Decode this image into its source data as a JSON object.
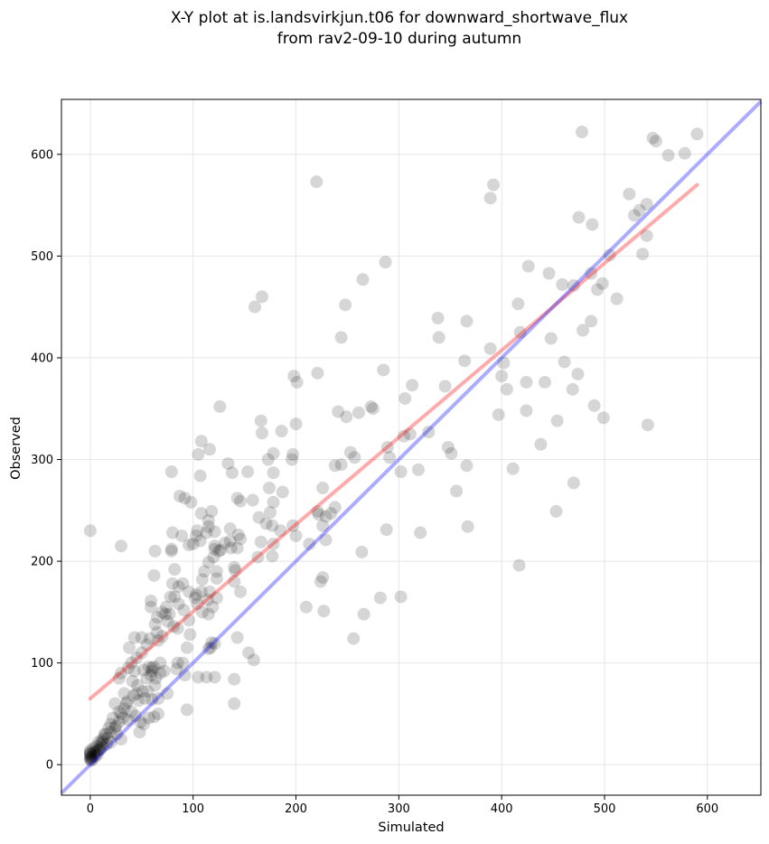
{
  "chart_data": {
    "type": "scatter",
    "title_line1": "X-Y plot at is.landsvirkjun.t06 for downward_shortwave_flux",
    "title_line2": "from rav2-09-10 during autumn",
    "xlabel": "Simulated",
    "ylabel": "Observed",
    "xlim": [
      -28,
      652
    ],
    "ylim": [
      -30,
      654
    ],
    "x_ticks": [
      0,
      100,
      200,
      300,
      400,
      500,
      600
    ],
    "y_ticks": [
      0,
      100,
      200,
      300,
      400,
      500,
      600
    ],
    "grid": true,
    "colors": {
      "points": "#000000",
      "fit_line": "#ff0000",
      "identity_line": "#0000ff"
    },
    "fit_line": {
      "x": [
        0,
        590
      ],
      "y": [
        65,
        570
      ]
    },
    "identity_line": {
      "x": [
        -28,
        652
      ],
      "y": [
        -28,
        652
      ]
    },
    "points": [
      [
        0,
        230
      ],
      [
        30,
        215
      ],
      [
        220,
        573
      ],
      [
        478,
        622
      ],
      [
        590,
        620
      ],
      [
        547,
        616
      ],
      [
        550,
        613
      ],
      [
        562,
        599
      ],
      [
        578,
        601
      ],
      [
        392,
        570
      ],
      [
        389,
        557
      ],
      [
        524,
        561
      ],
      [
        541,
        551
      ],
      [
        534,
        545
      ],
      [
        529,
        540
      ],
      [
        475,
        538
      ],
      [
        488,
        531
      ],
      [
        287,
        494
      ],
      [
        426,
        490
      ],
      [
        505,
        501
      ],
      [
        537,
        502
      ],
      [
        541,
        520
      ],
      [
        446,
        483
      ],
      [
        487,
        483
      ],
      [
        459,
        472
      ],
      [
        498,
        473
      ],
      [
        470,
        471
      ],
      [
        493,
        467
      ],
      [
        265,
        477
      ],
      [
        248,
        452
      ],
      [
        416,
        453
      ],
      [
        160,
        450
      ],
      [
        167,
        460
      ],
      [
        512,
        458
      ],
      [
        487,
        436
      ],
      [
        479,
        427
      ],
      [
        338,
        439
      ],
      [
        366,
        436
      ],
      [
        244,
        420
      ],
      [
        339,
        420
      ],
      [
        418,
        425
      ],
      [
        448,
        419
      ],
      [
        364,
        397
      ],
      [
        389,
        409
      ],
      [
        402,
        395
      ],
      [
        461,
        396
      ],
      [
        400,
        382
      ],
      [
        285,
        388
      ],
      [
        198,
        382
      ],
      [
        221,
        385
      ],
      [
        201,
        376
      ],
      [
        424,
        376
      ],
      [
        442,
        376
      ],
      [
        474,
        384
      ],
      [
        313,
        373
      ],
      [
        345,
        372
      ],
      [
        405,
        369
      ],
      [
        469,
        369
      ],
      [
        490,
        353
      ],
      [
        424,
        348
      ],
      [
        306,
        360
      ],
      [
        397,
        344
      ],
      [
        499,
        341
      ],
      [
        454,
        338
      ],
      [
        542,
        334
      ],
      [
        438,
        315
      ],
      [
        261,
        346
      ],
      [
        249,
        342
      ],
      [
        241,
        347
      ],
      [
        275,
        350
      ],
      [
        273,
        352
      ],
      [
        200,
        335
      ],
      [
        166,
        338
      ],
      [
        186,
        328
      ],
      [
        167,
        326
      ],
      [
        311,
        325
      ],
      [
        329,
        327
      ],
      [
        305,
        323
      ],
      [
        348,
        312
      ],
      [
        351,
        306
      ],
      [
        253,
        307
      ],
      [
        257,
        302
      ],
      [
        238,
        294
      ],
      [
        244,
        295
      ],
      [
        226,
        272
      ],
      [
        197,
        305
      ],
      [
        289,
        312
      ],
      [
        291,
        302
      ],
      [
        302,
        288
      ],
      [
        319,
        290
      ],
      [
        366,
        294
      ],
      [
        411,
        291
      ],
      [
        417,
        196
      ],
      [
        367,
        234
      ],
      [
        321,
        228
      ],
      [
        264,
        209
      ],
      [
        356,
        269
      ],
      [
        288,
        231
      ],
      [
        453,
        249
      ],
      [
        470,
        277
      ],
      [
        213,
        217
      ],
      [
        229,
        221
      ],
      [
        226,
        235
      ],
      [
        229,
        244
      ],
      [
        234,
        247
      ],
      [
        238,
        253
      ],
      [
        221,
        249
      ],
      [
        222,
        246
      ],
      [
        197,
        235
      ],
      [
        185,
        230
      ],
      [
        200,
        225
      ],
      [
        178,
        217
      ],
      [
        177,
        205
      ],
      [
        163,
        204
      ],
      [
        166,
        219
      ],
      [
        171,
        237
      ],
      [
        177,
        235
      ],
      [
        178,
        258
      ],
      [
        175,
        248
      ],
      [
        164,
        243
      ],
      [
        158,
        260
      ],
      [
        174,
        272
      ],
      [
        178,
        287
      ],
      [
        178,
        306
      ],
      [
        173,
        300
      ],
      [
        196,
        300
      ],
      [
        187,
        268
      ],
      [
        146,
        259
      ],
      [
        153,
        288
      ],
      [
        143,
        262
      ],
      [
        121,
        212
      ],
      [
        125,
        210
      ],
      [
        137,
        213
      ],
      [
        143,
        213
      ],
      [
        131,
        218
      ],
      [
        136,
        220
      ],
      [
        136,
        232
      ],
      [
        144,
        226
      ],
      [
        146,
        222
      ],
      [
        121,
        229
      ],
      [
        115,
        234
      ],
      [
        118,
        249
      ],
      [
        108,
        247
      ],
      [
        104,
        230
      ],
      [
        115,
        240
      ],
      [
        92,
        262
      ],
      [
        98,
        258
      ],
      [
        87,
        264
      ],
      [
        116,
        310
      ],
      [
        108,
        318
      ],
      [
        105,
        305
      ],
      [
        107,
        284
      ],
      [
        134,
        296
      ],
      [
        126,
        352
      ],
      [
        79,
        288
      ],
      [
        138,
        287
      ],
      [
        89,
        225
      ],
      [
        80,
        228
      ],
      [
        79,
        212
      ],
      [
        79,
        210
      ],
      [
        96,
        216
      ],
      [
        100,
        217
      ],
      [
        107,
        220
      ],
      [
        103,
        225
      ],
      [
        113,
        228
      ],
      [
        121,
        215
      ],
      [
        127,
        211
      ],
      [
        120,
        204
      ],
      [
        115,
        199
      ],
      [
        123,
        190
      ],
      [
        111,
        190
      ],
      [
        123,
        183
      ],
      [
        109,
        182
      ],
      [
        116,
        170
      ],
      [
        141,
        191
      ],
      [
        140,
        194
      ],
      [
        146,
        170
      ],
      [
        140,
        180
      ],
      [
        108,
        170
      ],
      [
        104,
        158
      ],
      [
        96,
        170
      ],
      [
        103,
        167
      ],
      [
        102,
        164
      ],
      [
        90,
        178
      ],
      [
        82,
        192
      ],
      [
        80,
        178
      ],
      [
        86,
        175
      ],
      [
        82,
        165
      ],
      [
        78,
        165
      ],
      [
        77,
        148
      ],
      [
        86,
        158
      ],
      [
        91,
        152
      ],
      [
        96,
        142
      ],
      [
        85,
        134
      ],
      [
        75,
        141
      ],
      [
        73,
        148
      ],
      [
        81,
        136
      ],
      [
        109,
        150
      ],
      [
        115,
        148
      ],
      [
        119,
        155
      ],
      [
        123,
        164
      ],
      [
        114,
        162
      ],
      [
        97,
        128
      ],
      [
        94,
        115
      ],
      [
        115,
        114
      ],
      [
        117,
        115
      ],
      [
        118,
        120
      ],
      [
        121,
        119
      ],
      [
        143,
        125
      ],
      [
        154,
        110
      ],
      [
        159,
        103
      ],
      [
        105,
        86
      ],
      [
        113,
        86
      ],
      [
        121,
        86
      ],
      [
        92,
        88
      ],
      [
        84,
        94
      ],
      [
        68,
        100
      ],
      [
        72,
        92
      ],
      [
        66,
        122
      ],
      [
        70,
        126
      ],
      [
        58,
        124
      ],
      [
        63,
        138
      ],
      [
        59,
        155
      ],
      [
        59,
        161
      ],
      [
        62,
        186
      ],
      [
        63,
        210
      ],
      [
        43,
        125
      ],
      [
        38,
        115
      ],
      [
        40,
        100
      ],
      [
        43,
        92
      ],
      [
        52,
        93
      ],
      [
        57,
        96
      ],
      [
        55,
        85
      ],
      [
        59,
        88
      ],
      [
        60,
        92
      ],
      [
        60,
        95
      ],
      [
        62,
        96
      ],
      [
        64,
        85
      ],
      [
        68,
        90
      ],
      [
        42,
        68
      ],
      [
        45,
        70
      ],
      [
        47,
        63
      ],
      [
        51,
        72
      ],
      [
        53,
        65
      ],
      [
        60,
        64
      ],
      [
        36,
        62
      ],
      [
        33,
        55
      ],
      [
        30,
        50
      ],
      [
        28,
        52
      ],
      [
        24,
        60
      ],
      [
        22,
        46
      ],
      [
        20,
        40
      ],
      [
        25,
        38
      ],
      [
        18,
        36
      ],
      [
        15,
        30
      ],
      [
        13,
        26
      ],
      [
        12,
        22
      ],
      [
        10,
        20
      ],
      [
        9,
        16
      ],
      [
        8,
        14
      ],
      [
        7,
        10
      ],
      [
        5,
        8
      ],
      [
        5,
        12
      ],
      [
        6,
        14
      ],
      [
        4,
        10
      ],
      [
        3,
        12
      ],
      [
        2,
        8
      ],
      [
        2,
        5
      ],
      [
        1,
        4
      ],
      [
        1,
        7
      ],
      [
        0,
        5
      ],
      [
        0,
        8
      ],
      [
        0,
        10
      ],
      [
        0,
        12
      ],
      [
        0,
        14
      ],
      [
        0,
        6
      ],
      [
        0,
        11
      ],
      [
        3,
        16
      ],
      [
        6,
        18
      ],
      [
        8,
        22
      ],
      [
        11,
        24
      ],
      [
        14,
        30
      ],
      [
        17,
        26
      ],
      [
        20,
        32
      ],
      [
        24,
        36
      ],
      [
        28,
        42
      ],
      [
        32,
        46
      ],
      [
        37,
        44
      ],
      [
        40,
        52
      ],
      [
        44,
        48
      ],
      [
        49,
        42
      ],
      [
        52,
        40
      ],
      [
        57,
        46
      ],
      [
        62,
        47
      ],
      [
        66,
        65
      ],
      [
        48,
        32
      ],
      [
        30,
        25
      ],
      [
        26,
        30
      ],
      [
        20,
        22
      ],
      [
        16,
        20
      ],
      [
        12,
        18
      ],
      [
        10,
        15
      ],
      [
        33,
        70
      ],
      [
        35,
        60
      ],
      [
        41,
        82
      ],
      [
        46,
        78
      ],
      [
        56,
        72
      ],
      [
        66,
        50
      ],
      [
        63,
        78
      ],
      [
        75,
        70
      ],
      [
        85,
        100
      ],
      [
        90,
        100
      ],
      [
        30,
        90
      ],
      [
        37,
        95
      ],
      [
        28,
        85
      ],
      [
        45,
        105
      ],
      [
        50,
        110
      ],
      [
        50,
        125
      ],
      [
        55,
        118
      ],
      [
        65,
        130
      ],
      [
        65,
        145
      ],
      [
        70,
        150
      ],
      [
        74,
        155
      ],
      [
        94,
        54
      ],
      [
        140,
        84
      ],
      [
        140,
        60
      ],
      [
        226,
        184
      ],
      [
        224,
        180
      ],
      [
        210,
        155
      ],
      [
        227,
        151
      ],
      [
        256,
        124
      ],
      [
        266,
        148
      ],
      [
        282,
        164
      ],
      [
        302,
        165
      ]
    ]
  }
}
